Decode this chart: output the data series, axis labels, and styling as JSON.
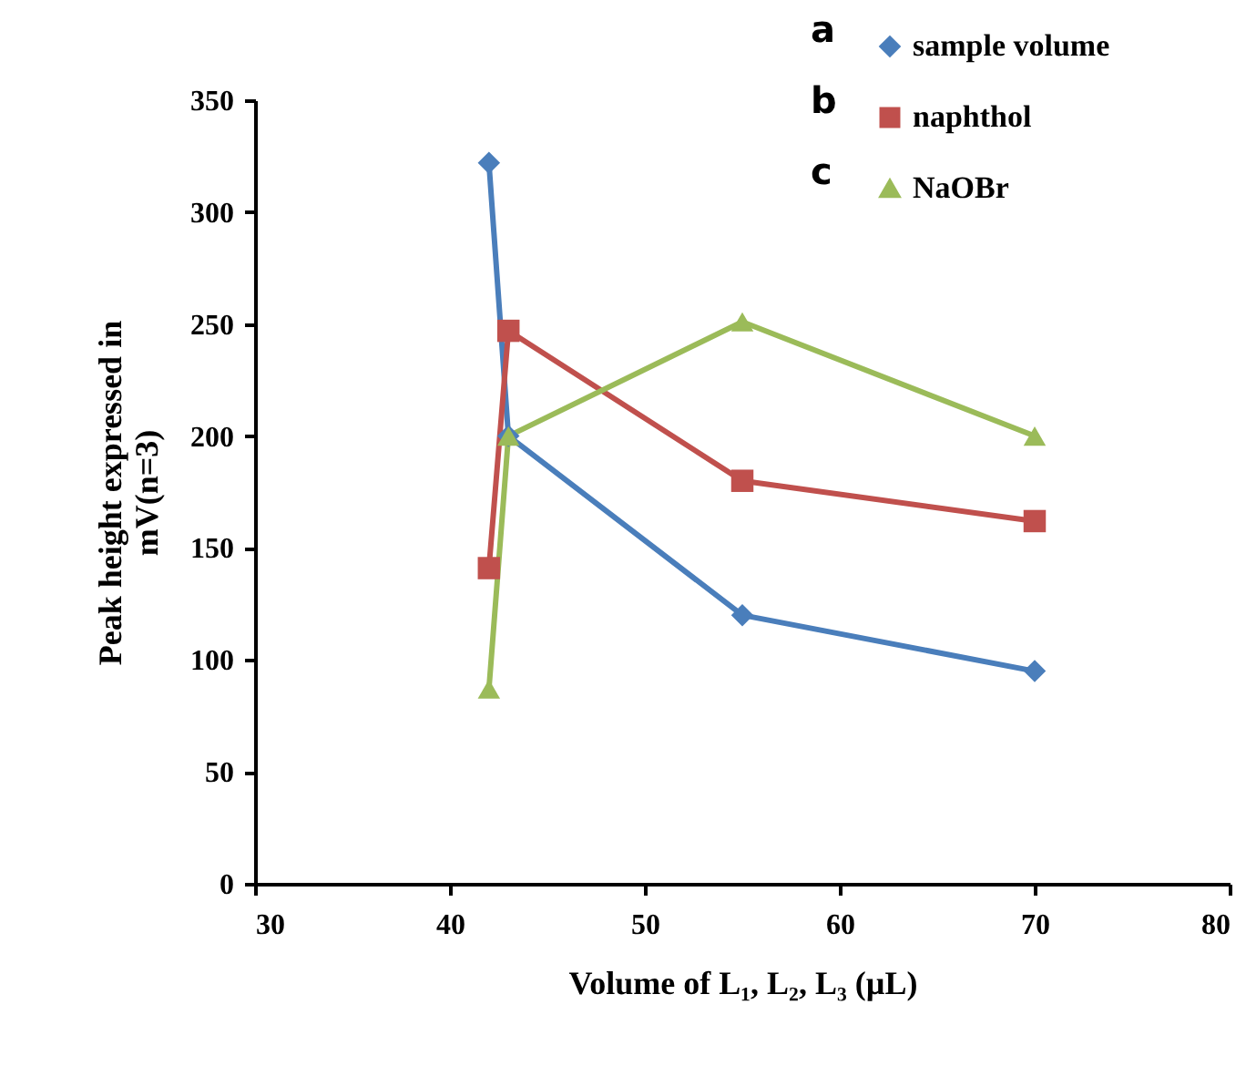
{
  "chart_data": {
    "type": "line",
    "xlabel": "Volume of L₁, L₂, L₃ (µL)",
    "ylabel": "Peak height expressed in\nmV(n=3)",
    "xlim": [
      30,
      80
    ],
    "xticks": [
      30,
      40,
      50,
      60,
      70,
      80
    ],
    "ylim": [
      0,
      350
    ],
    "yticks": [
      0,
      50,
      100,
      150,
      200,
      250,
      300,
      350
    ],
    "grid": false,
    "legend": "top right",
    "annotations": [
      "a",
      "b",
      "c"
    ],
    "series": [
      {
        "name": "sample volume",
        "color": "#4a7ebb",
        "marker": "diamond",
        "x": [
          42,
          43,
          55,
          70
        ],
        "values": [
          322,
          200,
          120,
          95
        ]
      },
      {
        "name": "naphthol",
        "color": "#c0504d",
        "marker": "square",
        "x": [
          42,
          43,
          55,
          70
        ],
        "values": [
          141,
          247,
          180,
          162
        ]
      },
      {
        "name": "NaOBr",
        "color": "#9bbb59",
        "marker": "triangle",
        "x": [
          42,
          43,
          55,
          70
        ],
        "values": [
          87,
          200,
          251,
          200
        ]
      }
    ]
  }
}
